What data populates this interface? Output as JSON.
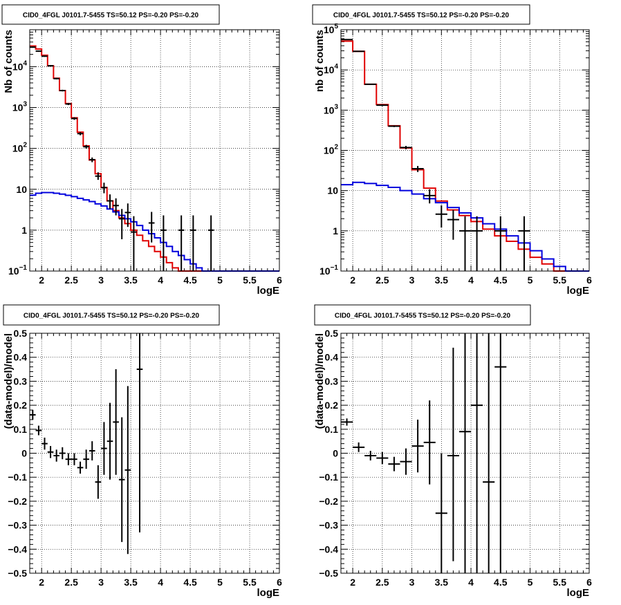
{
  "colors": {
    "data": "#000000",
    "total_model": "#e00000",
    "background_model": "#0000dd"
  },
  "chart_data": [
    {
      "type": "line",
      "panel": "top-left",
      "title": "CID0_4FGL J0101.7-5455 TS=50.12 PS=-0.20 PS=-0.20",
      "xlabel": "logE",
      "ylabel": "Nb of counts",
      "xlim": [
        1.8,
        6
      ],
      "ylim": [
        0.1,
        80000
      ],
      "yscale": "log",
      "grid": true,
      "x_ticks": [
        2,
        2.5,
        3,
        3.5,
        4,
        4.5,
        5,
        5.5,
        6
      ],
      "x_tick_labels": [
        "2",
        "2.5",
        "3",
        "3.5",
        "4",
        "4.5",
        "5",
        "5.5",
        "6"
      ],
      "y_ticks": [
        0.1,
        1,
        10,
        100,
        1000,
        10000
      ],
      "y_tick_labels": [
        {
          "base": "10",
          "exp": "−1"
        },
        {
          "base": "1",
          "exp": ""
        },
        {
          "base": "10",
          "exp": ""
        },
        {
          "base": "10",
          "exp": "2"
        },
        {
          "base": "10",
          "exp": "3"
        },
        {
          "base": "10",
          "exp": "4"
        }
      ],
      "bin_edges": [
        1.8,
        1.9,
        2.0,
        2.1,
        2.2,
        2.3,
        2.4,
        2.5,
        2.6,
        2.7,
        2.8,
        2.9,
        3.0,
        3.1,
        3.2,
        3.3,
        3.4,
        3.5,
        3.6,
        3.7,
        3.8,
        3.9,
        4.0,
        4.1,
        4.2,
        4.3,
        4.4,
        4.5,
        4.6,
        4.7,
        4.8,
        4.9,
        5.0,
        5.1,
        5.2,
        5.3,
        5.4,
        5.5,
        5.6,
        5.7,
        5.8,
        5.9,
        6.0
      ],
      "series": [
        {
          "role": "total_model",
          "values": [
            32000,
            27000,
            19000,
            10500,
            5200,
            2600,
            1250,
            560,
            250,
            115,
            52,
            24,
            11,
            5.2,
            3.0,
            2.0,
            1.45,
            1.0,
            0.75,
            0.55,
            0.4,
            0.3,
            0.22,
            0.16,
            0.12,
            0.1,
            0.1,
            0.1,
            0.1,
            0.1,
            0.1,
            0.1,
            0.1,
            0.1,
            0.1,
            0.1,
            0.1,
            0.1,
            0.1,
            0.1,
            0.1,
            0.1
          ]
        },
        {
          "role": "background_model",
          "values": [
            7.2,
            8.0,
            8.3,
            8.3,
            8.0,
            7.6,
            7.1,
            6.6,
            6.0,
            5.5,
            5.0,
            4.4,
            3.9,
            3.3,
            2.8,
            2.3,
            1.9,
            1.6,
            1.3,
            1.0,
            0.82,
            0.65,
            0.5,
            0.4,
            0.3,
            0.24,
            0.19,
            0.15,
            0.12,
            0.1,
            0.1,
            0.1,
            0.1,
            0.1,
            0.1,
            0.1,
            0.1,
            0.1,
            0.1,
            0.1,
            0.1,
            0.1
          ]
        }
      ],
      "points": [
        {
          "x": 1.85,
          "y": 30000,
          "ylo": 29000,
          "yhi": 31000,
          "xerr": 0.05
        },
        {
          "x": 1.95,
          "y": 24000,
          "ylo": 23200,
          "yhi": 24800,
          "xerr": 0.05
        },
        {
          "x": 2.05,
          "y": 18000,
          "ylo": 17400,
          "yhi": 18600,
          "xerr": 0.05
        },
        {
          "x": 2.15,
          "y": 10500,
          "ylo": 10100,
          "yhi": 10900,
          "xerr": 0.05
        },
        {
          "x": 2.25,
          "y": 5100,
          "ylo": 4900,
          "yhi": 5300,
          "xerr": 0.05
        },
        {
          "x": 2.35,
          "y": 2600,
          "ylo": 2480,
          "yhi": 2720,
          "xerr": 0.05
        },
        {
          "x": 2.45,
          "y": 1220,
          "ylo": 1150,
          "yhi": 1290,
          "xerr": 0.05
        },
        {
          "x": 2.55,
          "y": 540,
          "ylo": 500,
          "yhi": 580,
          "xerr": 0.05
        },
        {
          "x": 2.65,
          "y": 230,
          "ylo": 210,
          "yhi": 250,
          "xerr": 0.05
        },
        {
          "x": 2.75,
          "y": 110,
          "ylo": 98,
          "yhi": 122,
          "xerr": 0.05
        },
        {
          "x": 2.85,
          "y": 53,
          "ylo": 46,
          "yhi": 60,
          "xerr": 0.05
        },
        {
          "x": 2.95,
          "y": 21,
          "ylo": 17,
          "yhi": 26,
          "xerr": 0.05
        },
        {
          "x": 3.05,
          "y": 11,
          "ylo": 8,
          "yhi": 14.5,
          "xerr": 0.05
        },
        {
          "x": 3.15,
          "y": 5.2,
          "ylo": 3.3,
          "yhi": 7.5,
          "xerr": 0.05
        },
        {
          "x": 3.25,
          "y": 4.0,
          "ylo": 2.3,
          "yhi": 6.0,
          "xerr": 0.05
        },
        {
          "x": 3.35,
          "y": 1.9,
          "ylo": 0.6,
          "yhi": 3.3,
          "xerr": 0.05
        },
        {
          "x": 3.45,
          "y": 2.7,
          "ylo": 1.2,
          "yhi": 4.5,
          "xerr": 0.05
        },
        {
          "x": 3.55,
          "y": 0.9,
          "ylo": 0.1,
          "yhi": 2.2,
          "xerr": 0.05
        },
        {
          "x": 3.85,
          "y": 1.5,
          "ylo": 0.5,
          "yhi": 2.8,
          "xerr": 0.05
        },
        {
          "x": 4.05,
          "y": 1.0,
          "ylo": 0.1,
          "yhi": 2.3,
          "xerr": 0.05
        },
        {
          "x": 4.35,
          "y": 1.0,
          "ylo": 0.1,
          "yhi": 2.3,
          "xerr": 0.05
        },
        {
          "x": 4.55,
          "y": 1.0,
          "ylo": 0.1,
          "yhi": 2.3,
          "xerr": 0.05
        },
        {
          "x": 4.85,
          "y": 1.0,
          "ylo": 0.1,
          "yhi": 2.3,
          "xerr": 0.05
        }
      ]
    },
    {
      "type": "line",
      "panel": "top-right",
      "title": "CID0_4FGL J0101.7-5455 TS=50.12 PS=-0.20 PS=-0.20",
      "xlabel": "logE",
      "ylabel": "nb of counts",
      "xlim": [
        1.8,
        6
      ],
      "ylim": [
        0.1,
        100000
      ],
      "yscale": "log",
      "grid": true,
      "x_ticks": [
        2,
        2.5,
        3,
        3.5,
        4,
        4.5,
        5,
        5.5,
        6
      ],
      "x_tick_labels": [
        "2",
        "2.5",
        "3",
        "3.5",
        "4",
        "4.5",
        "5",
        "5.5",
        "6"
      ],
      "y_ticks": [
        0.1,
        1,
        10,
        100,
        1000,
        10000,
        100000
      ],
      "y_tick_labels": [
        {
          "base": "10",
          "exp": "−1"
        },
        {
          "base": "1",
          "exp": ""
        },
        {
          "base": "10",
          "exp": ""
        },
        {
          "base": "10",
          "exp": "2"
        },
        {
          "base": "10",
          "exp": "3"
        },
        {
          "base": "10",
          "exp": "4"
        },
        {
          "base": "10",
          "exp": "5"
        }
      ],
      "bin_edges": [
        1.8,
        2.0,
        2.2,
        2.4,
        2.6,
        2.8,
        3.0,
        3.2,
        3.4,
        3.6,
        3.8,
        4.0,
        4.2,
        4.4,
        4.6,
        4.8,
        5.0,
        5.2,
        5.4,
        5.6,
        5.8,
        6.0
      ],
      "series": [
        {
          "role": "total_model",
          "values": [
            52000,
            29000,
            4400,
            1380,
            410,
            115,
            33,
            11.5,
            5.5,
            3.3,
            2.4,
            1.7,
            1.1,
            0.75,
            0.55,
            0.35,
            0.22,
            0.15,
            0.1,
            0.1,
            0.1
          ]
        },
        {
          "role": "background_model",
          "values": [
            14,
            16,
            15,
            13.5,
            12,
            10,
            8.2,
            6.3,
            5.0,
            3.8,
            2.8,
            2.1,
            1.5,
            1.1,
            0.75,
            0.5,
            0.32,
            0.2,
            0.13,
            0.1,
            0.1
          ]
        }
      ],
      "points": [
        {
          "x": 1.9,
          "y": 57000,
          "ylo": 55500,
          "yhi": 58500,
          "xerr": 0.1
        },
        {
          "x": 2.1,
          "y": 29000,
          "ylo": 28200,
          "yhi": 29800,
          "xerr": 0.1
        },
        {
          "x": 2.3,
          "y": 4400,
          "ylo": 4250,
          "yhi": 4550,
          "xerr": 0.1
        },
        {
          "x": 2.5,
          "y": 1330,
          "ylo": 1260,
          "yhi": 1400,
          "xerr": 0.1
        },
        {
          "x": 2.7,
          "y": 400,
          "ylo": 380,
          "yhi": 420,
          "xerr": 0.1
        },
        {
          "x": 2.9,
          "y": 118,
          "ylo": 107,
          "yhi": 129,
          "xerr": 0.1
        },
        {
          "x": 3.1,
          "y": 35,
          "ylo": 29,
          "yhi": 41,
          "xerr": 0.1
        },
        {
          "x": 3.3,
          "y": 7.5,
          "ylo": 4.8,
          "yhi": 10.8,
          "xerr": 0.1
        },
        {
          "x": 3.5,
          "y": 2.6,
          "ylo": 1.2,
          "yhi": 4.3,
          "xerr": 0.1
        },
        {
          "x": 3.7,
          "y": 1.9,
          "ylo": 0.6,
          "yhi": 3.3,
          "xerr": 0.1
        },
        {
          "x": 3.9,
          "y": 1.0,
          "ylo": 0.1,
          "yhi": 2.3,
          "xerr": 0.1
        },
        {
          "x": 4.1,
          "y": 1.0,
          "ylo": 0.1,
          "yhi": 2.3,
          "xerr": 0.1
        },
        {
          "x": 4.5,
          "y": 1.0,
          "ylo": 0.1,
          "yhi": 2.3,
          "xerr": 0.1
        },
        {
          "x": 4.9,
          "y": 1.0,
          "ylo": 0.1,
          "yhi": 2.3,
          "xerr": 0.1
        }
      ]
    },
    {
      "type": "scatter",
      "panel": "bottom-left",
      "title": "CID0_4FGL J0101.7-5455 TS=50.12 PS=-0.20 PS=-0.20",
      "xlabel": "logE",
      "ylabel": "(data-model)/model",
      "xlim": [
        1.8,
        6
      ],
      "ylim": [
        -0.5,
        0.5
      ],
      "yscale": "linear",
      "grid": true,
      "x_ticks": [
        2,
        2.5,
        3,
        3.5,
        4,
        4.5,
        5,
        5.5,
        6
      ],
      "x_tick_labels": [
        "2",
        "2.5",
        "3",
        "3.5",
        "4",
        "4.5",
        "5",
        "5.5",
        "6"
      ],
      "y_ticks": [
        -0.5,
        -0.4,
        -0.3,
        -0.2,
        -0.1,
        0,
        0.1,
        0.2,
        0.3,
        0.4,
        0.5
      ],
      "y_tick_labels": [
        "−0.5",
        "−0.4",
        "−0.3",
        "−0.2",
        "−0.1",
        "0",
        "0.1",
        "0.2",
        "0.3",
        "0.4",
        "0.5"
      ],
      "points": [
        {
          "x": 1.85,
          "y": 0.16,
          "ylo": 0.14,
          "yhi": 0.18,
          "xerr": 0.05
        },
        {
          "x": 1.95,
          "y": 0.095,
          "ylo": 0.075,
          "yhi": 0.115,
          "xerr": 0.05
        },
        {
          "x": 2.05,
          "y": 0.04,
          "ylo": 0.015,
          "yhi": 0.065,
          "xerr": 0.05
        },
        {
          "x": 2.15,
          "y": 0.005,
          "ylo": -0.02,
          "yhi": 0.03,
          "xerr": 0.05
        },
        {
          "x": 2.25,
          "y": -0.01,
          "ylo": -0.035,
          "yhi": 0.015,
          "xerr": 0.05
        },
        {
          "x": 2.35,
          "y": 0.0,
          "ylo": -0.025,
          "yhi": 0.025,
          "xerr": 0.05
        },
        {
          "x": 2.45,
          "y": -0.025,
          "ylo": -0.05,
          "yhi": 0.0,
          "xerr": 0.05
        },
        {
          "x": 2.55,
          "y": -0.025,
          "ylo": -0.05,
          "yhi": 0.0,
          "xerr": 0.05
        },
        {
          "x": 2.65,
          "y": -0.06,
          "ylo": -0.085,
          "yhi": -0.035,
          "xerr": 0.05
        },
        {
          "x": 2.75,
          "y": -0.025,
          "ylo": -0.065,
          "yhi": 0.015,
          "xerr": 0.05
        },
        {
          "x": 2.85,
          "y": 0.01,
          "ylo": -0.03,
          "yhi": 0.05,
          "xerr": 0.05
        },
        {
          "x": 2.95,
          "y": -0.12,
          "ylo": -0.19,
          "yhi": -0.05,
          "xerr": 0.05
        },
        {
          "x": 3.05,
          "y": 0.02,
          "ylo": -0.09,
          "yhi": 0.13,
          "xerr": 0.05
        },
        {
          "x": 3.15,
          "y": 0.05,
          "ylo": -0.11,
          "yhi": 0.21,
          "xerr": 0.05
        },
        {
          "x": 3.25,
          "y": 0.13,
          "ylo": -0.09,
          "yhi": 0.35,
          "xerr": 0.05
        },
        {
          "x": 3.35,
          "y": -0.11,
          "ylo": -0.37,
          "yhi": 0.15,
          "xerr": 0.05
        },
        {
          "x": 3.45,
          "y": -0.07,
          "ylo": -0.42,
          "yhi": 0.28,
          "xerr": 0.05
        },
        {
          "x": 3.65,
          "y": 0.35,
          "ylo": -0.33,
          "yhi": 0.5,
          "xerr": 0.05
        }
      ]
    },
    {
      "type": "scatter",
      "panel": "bottom-right",
      "title": "CID0_4FGL J0101.7-5455 TS=50.12 PS=-0.20 PS=-0.20",
      "xlabel": "logE",
      "ylabel": "(data-model)/model",
      "xlim": [
        1.8,
        6
      ],
      "ylim": [
        -0.5,
        0.5
      ],
      "yscale": "linear",
      "grid": true,
      "x_ticks": [
        2,
        2.5,
        3,
        3.5,
        4,
        4.5,
        5,
        5.5,
        6
      ],
      "x_tick_labels": [
        "2",
        "2.5",
        "3",
        "3.5",
        "4",
        "4.5",
        "5",
        "5.5",
        "6"
      ],
      "y_ticks": [
        -0.5,
        -0.4,
        -0.3,
        -0.2,
        -0.1,
        0,
        0.1,
        0.2,
        0.3,
        0.4,
        0.5
      ],
      "y_tick_labels": [
        "−0.5",
        "−0.4",
        "−0.3",
        "−0.2",
        "−0.1",
        "0",
        "0.1",
        "0.2",
        "0.3",
        "0.4",
        "0.5"
      ],
      "points": [
        {
          "x": 1.9,
          "y": 0.13,
          "ylo": 0.115,
          "yhi": 0.145,
          "xerr": 0.1
        },
        {
          "x": 2.1,
          "y": 0.025,
          "ylo": 0.005,
          "yhi": 0.045,
          "xerr": 0.1
        },
        {
          "x": 2.3,
          "y": -0.01,
          "ylo": -0.03,
          "yhi": 0.01,
          "xerr": 0.1
        },
        {
          "x": 2.5,
          "y": -0.02,
          "ylo": -0.045,
          "yhi": 0.005,
          "xerr": 0.1
        },
        {
          "x": 2.7,
          "y": -0.045,
          "ylo": -0.075,
          "yhi": -0.015,
          "xerr": 0.1
        },
        {
          "x": 2.9,
          "y": -0.035,
          "ylo": -0.09,
          "yhi": 0.02,
          "xerr": 0.1
        },
        {
          "x": 3.1,
          "y": 0.03,
          "ylo": -0.08,
          "yhi": 0.14,
          "xerr": 0.1
        },
        {
          "x": 3.3,
          "y": 0.045,
          "ylo": -0.13,
          "yhi": 0.22,
          "xerr": 0.1
        },
        {
          "x": 3.5,
          "y": -0.25,
          "ylo": -0.5,
          "yhi": 0.0,
          "xerr": 0.1
        },
        {
          "x": 3.7,
          "y": -0.01,
          "ylo": -0.45,
          "yhi": 0.44,
          "xerr": 0.1
        },
        {
          "x": 3.9,
          "y": 0.09,
          "ylo": -0.5,
          "yhi": 0.5,
          "xerr": 0.1
        },
        {
          "x": 4.1,
          "y": 0.2,
          "ylo": -0.5,
          "yhi": 0.5,
          "xerr": 0.1
        },
        {
          "x": 4.3,
          "y": -0.12,
          "ylo": -0.5,
          "yhi": 0.5,
          "xerr": 0.1
        },
        {
          "x": 4.5,
          "y": 0.36,
          "ylo": -0.5,
          "yhi": 0.5,
          "xerr": 0.1
        }
      ]
    }
  ]
}
